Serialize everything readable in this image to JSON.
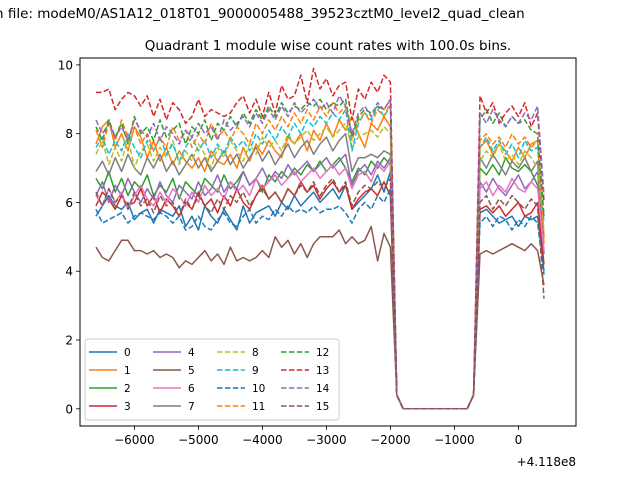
{
  "figure": {
    "suptitle": "n file: modeM0/AS1A12_018T01_9000005488_39523cztM0_level2_quad_clean"
  },
  "chart_data": {
    "type": "line",
    "title": "Quadrant 1 module wise count rates with 100.0s bins.",
    "xlabel": "",
    "ylabel": "",
    "x_offset_text": "+4.118e8",
    "xlim": [
      -6850,
      900
    ],
    "ylim": [
      -0.5,
      10.2
    ],
    "x_ticks": [
      -6000,
      -5000,
      -4000,
      -3000,
      -2000,
      -1000,
      0
    ],
    "x_tick_labels": [
      "−6000",
      "−5000",
      "−4000",
      "−3000",
      "−2000",
      "−1000",
      "0"
    ],
    "y_ticks": [
      0,
      2,
      4,
      6,
      8,
      10
    ],
    "y_tick_labels": [
      "0",
      "2",
      "4",
      "6",
      "8",
      "10"
    ],
    "grid": false,
    "legend": {
      "placement": "lower-left",
      "columns": 4
    },
    "x_range": {
      "start": -6600,
      "step": 100,
      "note_x_is_offset_from": "+4.118e8"
    },
    "series": [
      {
        "name": "0",
        "color": "#1f77b4",
        "dash": "solid",
        "values": [
          5.6,
          5.9,
          6.2,
          5.9,
          5.8,
          6.0,
          5.5,
          5.7,
          5.8,
          5.4,
          5.8,
          5.7,
          5.6,
          5.9,
          5.3,
          5.6,
          5.2,
          5.9,
          5.6,
          5.4,
          5.8,
          5.5,
          5.2,
          5.9,
          5.4,
          5.7,
          5.8,
          5.9,
          5.6,
          6.0,
          5.8,
          6.2,
          5.9,
          6.1,
          6.3,
          6.0,
          6.2,
          6.4,
          6.1,
          6.5,
          5.8,
          6.0,
          6.2,
          6.4,
          6.8,
          6.3,
          6.9,
          0.4,
          0.0,
          0.0,
          0.0,
          0.0,
          0.0,
          0.0,
          0.0,
          0.0,
          0.0,
          0.0,
          0.0,
          0.4,
          5.7,
          5.8,
          5.6,
          5.4,
          5.5,
          5.6,
          5.3,
          5.6,
          5.5,
          5.6,
          4.0
        ]
      },
      {
        "name": "1",
        "color": "#ff7f0e",
        "dash": "solid",
        "values": [
          7.7,
          8.2,
          8.4,
          7.6,
          8.0,
          7.5,
          8.2,
          7.9,
          7.3,
          7.8,
          7.2,
          7.6,
          7.1,
          7.5,
          7.2,
          7.0,
          7.3,
          6.9,
          7.5,
          7.2,
          7.1,
          7.4,
          7.0,
          7.6,
          7.2,
          7.7,
          7.4,
          7.8,
          7.5,
          7.3,
          7.9,
          7.7,
          8.0,
          7.5,
          8.1,
          7.8,
          8.3,
          7.9,
          8.4,
          8.1,
          8.5,
          8.0,
          7.6,
          8.3,
          8.1,
          8.5,
          8.2,
          0.4,
          0.0,
          0.0,
          0.0,
          0.0,
          0.0,
          0.0,
          0.0,
          0.0,
          0.0,
          0.0,
          0.0,
          0.4,
          7.6,
          7.8,
          7.4,
          7.7,
          7.5,
          7.2,
          7.6,
          7.3,
          7.7,
          7.8,
          4.8
        ]
      },
      {
        "name": "2",
        "color": "#2ca02c",
        "dash": "solid",
        "values": [
          6.7,
          6.4,
          6.9,
          6.3,
          6.7,
          6.2,
          6.6,
          6.4,
          6.8,
          6.2,
          6.5,
          6.3,
          6.7,
          6.1,
          6.6,
          6.4,
          6.2,
          6.7,
          6.5,
          6.3,
          6.8,
          6.4,
          6.6,
          6.9,
          6.5,
          6.7,
          6.3,
          6.8,
          6.6,
          6.9,
          6.7,
          7.0,
          6.8,
          7.1,
          6.9,
          7.2,
          6.9,
          7.1,
          7.3,
          7.0,
          6.6,
          7.0,
          6.8,
          7.2,
          7.0,
          7.3,
          7.1,
          0.4,
          0.0,
          0.0,
          0.0,
          0.0,
          0.0,
          0.0,
          0.0,
          0.0,
          0.0,
          0.0,
          0.0,
          0.4,
          7.0,
          6.8,
          7.1,
          6.8,
          7.3,
          7.0,
          6.9,
          7.1,
          6.9,
          6.5,
          5.6
        ]
      },
      {
        "name": "3",
        "color": "#d62728",
        "dash": "solid",
        "values": [
          5.9,
          6.3,
          6.1,
          5.8,
          6.2,
          5.9,
          6.0,
          6.4,
          5.9,
          6.2,
          5.7,
          6.1,
          5.9,
          5.6,
          6.0,
          5.8,
          6.3,
          5.9,
          6.1,
          5.7,
          6.2,
          5.9,
          6.4,
          6.0,
          5.8,
          6.2,
          6.5,
          6.1,
          6.3,
          6.0,
          6.4,
          6.2,
          6.6,
          6.3,
          6.5,
          6.1,
          6.4,
          6.6,
          6.3,
          6.5,
          5.8,
          6.1,
          6.3,
          6.4,
          6.2,
          6.6,
          6.2,
          0.4,
          0.0,
          0.0,
          0.0,
          0.0,
          0.0,
          0.0,
          0.0,
          0.0,
          0.0,
          0.0,
          0.0,
          0.4,
          5.8,
          5.9,
          5.7,
          5.9,
          5.6,
          5.8,
          6.0,
          5.6,
          5.7,
          6.0,
          4.2
        ]
      },
      {
        "name": "4",
        "color": "#9467bd",
        "dash": "solid",
        "values": [
          6.2,
          6.6,
          6.0,
          6.5,
          6.2,
          6.7,
          6.3,
          6.0,
          6.4,
          6.1,
          6.6,
          6.2,
          6.0,
          6.5,
          6.3,
          6.1,
          6.6,
          6.2,
          6.4,
          6.8,
          6.3,
          6.6,
          6.4,
          6.9,
          6.5,
          6.7,
          7.0,
          6.6,
          6.9,
          6.7,
          7.1,
          6.8,
          7.0,
          7.2,
          6.9,
          7.1,
          7.3,
          7.0,
          7.2,
          7.4,
          6.5,
          6.9,
          7.1,
          6.8,
          7.2,
          7.0,
          7.3,
          0.4,
          0.0,
          0.0,
          0.0,
          0.0,
          0.0,
          0.0,
          0.0,
          0.0,
          0.0,
          0.0,
          0.0,
          0.4,
          6.6,
          6.3,
          6.7,
          6.4,
          6.2,
          6.5,
          6.8,
          6.4,
          6.6,
          6.9,
          4.5
        ]
      },
      {
        "name": "5",
        "color": "#8c564b",
        "dash": "solid",
        "values": [
          4.7,
          4.4,
          4.3,
          4.6,
          4.9,
          4.9,
          4.6,
          4.6,
          4.5,
          4.6,
          4.4,
          4.5,
          4.4,
          4.1,
          4.3,
          4.2,
          4.4,
          4.6,
          4.3,
          4.5,
          4.2,
          4.7,
          4.3,
          4.4,
          4.3,
          4.4,
          4.6,
          4.4,
          5.0,
          4.7,
          4.9,
          4.5,
          4.8,
          4.4,
          4.8,
          5.0,
          5.0,
          5.0,
          5.2,
          4.8,
          5.0,
          4.8,
          4.9,
          5.3,
          4.3,
          5.1,
          4.7,
          0.4,
          0.0,
          0.0,
          0.0,
          0.0,
          0.0,
          0.0,
          0.0,
          0.0,
          0.0,
          0.0,
          0.0,
          0.4,
          4.5,
          4.6,
          4.5,
          4.6,
          4.7,
          4.8,
          4.7,
          4.6,
          4.8,
          4.6,
          3.6
        ]
      },
      {
        "name": "6",
        "color": "#e377c2",
        "dash": "solid",
        "values": [
          6.2,
          5.9,
          6.4,
          6.0,
          6.3,
          5.8,
          6.2,
          6.5,
          6.1,
          5.9,
          6.3,
          6.0,
          6.4,
          6.2,
          5.9,
          6.3,
          6.0,
          6.5,
          6.2,
          6.4,
          6.1,
          6.6,
          6.3,
          6.5,
          6.2,
          6.7,
          6.4,
          6.6,
          6.8,
          6.5,
          6.7,
          6.9,
          6.6,
          6.8,
          7.0,
          6.7,
          6.9,
          7.1,
          6.8,
          7.0,
          6.4,
          6.8,
          6.9,
          6.6,
          7.1,
          6.9,
          7.2,
          0.4,
          0.0,
          0.0,
          0.0,
          0.0,
          0.0,
          0.0,
          0.0,
          0.0,
          0.0,
          0.0,
          0.0,
          0.4,
          6.4,
          6.6,
          6.2,
          6.5,
          6.3,
          6.7,
          6.4,
          6.3,
          6.6,
          6.4,
          4.6
        ]
      },
      {
        "name": "7",
        "color": "#7f7f7f",
        "dash": "solid",
        "values": [
          6.9,
          7.2,
          6.8,
          7.3,
          6.9,
          7.4,
          7.0,
          6.8,
          7.3,
          7.0,
          7.4,
          6.9,
          7.2,
          6.8,
          7.1,
          7.4,
          7.0,
          7.3,
          6.9,
          7.2,
          7.5,
          7.1,
          7.4,
          7.0,
          7.3,
          7.6,
          7.2,
          7.5,
          7.1,
          7.4,
          7.7,
          7.3,
          7.6,
          7.8,
          7.4,
          7.7,
          7.9,
          7.5,
          7.8,
          8.0,
          6.9,
          7.3,
          7.3,
          7.4,
          7.3,
          7.5,
          7.4,
          0.4,
          0.0,
          0.0,
          0.0,
          0.0,
          0.0,
          0.0,
          0.0,
          0.0,
          0.0,
          0.0,
          0.0,
          0.4,
          7.3,
          7.0,
          7.4,
          7.1,
          6.8,
          7.2,
          7.0,
          7.3,
          6.9,
          7.2,
          5.0
        ]
      },
      {
        "name": "8",
        "color": "#bcbd22",
        "dash": "dashed",
        "values": [
          7.4,
          7.8,
          7.1,
          7.6,
          7.2,
          7.9,
          7.0,
          7.5,
          7.7,
          7.2,
          7.6,
          7.3,
          7.8,
          7.1,
          7.5,
          7.2,
          7.7,
          7.4,
          7.0,
          7.6,
          7.3,
          7.8,
          7.5,
          7.2,
          7.7,
          7.4,
          7.9,
          7.6,
          7.8,
          7.5,
          8.0,
          7.7,
          7.9,
          8.1,
          7.8,
          8.0,
          8.2,
          7.9,
          8.1,
          8.3,
          7.6,
          7.9,
          8.0,
          8.1,
          7.9,
          8.2,
          8.0,
          0.4,
          0.0,
          0.0,
          0.0,
          0.0,
          0.0,
          0.0,
          0.0,
          0.0,
          0.0,
          0.0,
          0.0,
          0.4,
          7.2,
          7.5,
          7.3,
          7.7,
          7.2,
          7.4,
          7.1,
          7.5,
          7.3,
          7.0,
          5.2
        ]
      },
      {
        "name": "9",
        "color": "#17becf",
        "dash": "dashed",
        "values": [
          7.6,
          7.9,
          7.4,
          7.8,
          7.5,
          8.0,
          7.6,
          7.3,
          7.8,
          7.5,
          7.9,
          7.4,
          7.7,
          7.2,
          7.6,
          7.9,
          7.5,
          7.8,
          7.3,
          7.7,
          7.4,
          7.9,
          7.6,
          7.8,
          7.5,
          8.0,
          7.7,
          8.1,
          7.8,
          8.2,
          7.9,
          8.3,
          8.0,
          8.4,
          8.2,
          8.5,
          8.3,
          8.6,
          8.4,
          8.7,
          7.5,
          8.3,
          8.6,
          8.4,
          8.8,
          8.5,
          8.8,
          0.4,
          0.0,
          0.0,
          0.0,
          0.0,
          0.0,
          0.0,
          0.0,
          0.0,
          0.0,
          0.0,
          0.0,
          0.4,
          7.6,
          7.9,
          7.5,
          7.8,
          7.4,
          7.7,
          7.3,
          7.8,
          7.5,
          7.6,
          5.4
        ]
      },
      {
        "name": "10",
        "color": "#1f77b4",
        "dash": "dashed",
        "values": [
          5.8,
          5.4,
          5.5,
          5.6,
          5.7,
          5.4,
          5.6,
          5.7,
          5.6,
          5.5,
          5.7,
          5.6,
          5.4,
          5.6,
          5.2,
          5.3,
          5.6,
          5.3,
          5.2,
          5.5,
          5.7,
          5.4,
          5.3,
          5.6,
          5.8,
          5.4,
          5.6,
          5.5,
          5.8,
          5.6,
          5.9,
          5.7,
          5.8,
          5.7,
          5.9,
          5.7,
          5.8,
          5.8,
          5.9,
          5.7,
          5.4,
          5.8,
          6.0,
          5.8,
          6.2,
          6.0,
          6.4,
          0.4,
          0.0,
          0.0,
          0.0,
          0.0,
          0.0,
          0.0,
          0.0,
          0.0,
          0.0,
          0.0,
          0.0,
          0.4,
          5.4,
          5.6,
          5.3,
          5.6,
          5.5,
          5.2,
          5.5,
          5.3,
          5.6,
          5.4,
          3.9
        ]
      },
      {
        "name": "11",
        "color": "#ff7f0e",
        "dash": "dashed",
        "values": [
          8.1,
          7.6,
          8.3,
          7.8,
          8.4,
          7.9,
          8.2,
          7.7,
          8.0,
          7.5,
          7.9,
          7.6,
          8.2,
          7.8,
          8.1,
          7.6,
          8.0,
          7.7,
          8.3,
          7.9,
          8.1,
          7.8,
          8.2,
          8.0,
          7.7,
          8.3,
          8.0,
          8.4,
          8.1,
          8.5,
          8.2,
          8.6,
          8.3,
          8.7,
          8.4,
          8.8,
          8.5,
          8.9,
          8.6,
          8.8,
          7.8,
          8.4,
          8.6,
          8.3,
          8.7,
          8.5,
          8.9,
          0.4,
          0.0,
          0.0,
          0.0,
          0.0,
          0.0,
          0.0,
          0.0,
          0.0,
          0.0,
          0.0,
          0.0,
          0.4,
          7.8,
          8.0,
          7.7,
          7.9,
          7.6,
          8.0,
          7.7,
          7.9,
          7.6,
          7.8,
          5.0
        ]
      },
      {
        "name": "12",
        "color": "#2ca02c",
        "dash": "dashed",
        "values": [
          8.2,
          7.8,
          8.4,
          7.9,
          8.3,
          7.7,
          8.5,
          8.0,
          8.2,
          7.8,
          8.4,
          7.9,
          8.1,
          8.3,
          7.7,
          8.2,
          8.0,
          8.4,
          7.8,
          8.3,
          8.1,
          8.5,
          8.2,
          8.6,
          8.3,
          8.7,
          8.4,
          8.8,
          8.5,
          8.9,
          8.6,
          8.8,
          8.7,
          8.9,
          8.8,
          9.0,
          8.7,
          8.9,
          8.8,
          9.0,
          7.9,
          8.5,
          8.7,
          8.6,
          8.8,
          8.7,
          9.0,
          0.4,
          0.0,
          0.0,
          0.0,
          0.0,
          0.0,
          0.0,
          0.0,
          0.0,
          0.0,
          0.0,
          0.0,
          0.4,
          8.4,
          8.7,
          8.3,
          8.6,
          8.2,
          8.5,
          8.3,
          8.4,
          8.1,
          8.0,
          5.6
        ]
      },
      {
        "name": "13",
        "color": "#d62728",
        "dash": "dashed",
        "values": [
          9.2,
          9.2,
          9.3,
          8.7,
          9.0,
          9.2,
          9.1,
          8.8,
          9.1,
          8.5,
          9.0,
          8.4,
          8.9,
          8.7,
          8.3,
          8.5,
          9.0,
          8.5,
          8.7,
          8.6,
          8.5,
          8.6,
          8.9,
          9.1,
          8.6,
          9.0,
          8.5,
          9.2,
          8.6,
          9.4,
          9.0,
          9.1,
          9.7,
          8.9,
          9.9,
          9.3,
          9.6,
          9.1,
          9.4,
          9.5,
          8.4,
          9.3,
          9.0,
          9.5,
          9.2,
          9.7,
          9.5,
          0.4,
          0.0,
          0.0,
          0.0,
          0.0,
          0.0,
          0.0,
          0.0,
          0.0,
          0.0,
          0.0,
          0.0,
          0.4,
          9.1,
          8.6,
          8.9,
          8.3,
          8.6,
          8.8,
          8.5,
          8.9,
          8.2,
          8.6,
          6.0
        ]
      },
      {
        "name": "14",
        "color": "#9467bd",
        "dash": "dashed",
        "values": [
          8.4,
          8.0,
          8.3,
          7.9,
          8.2,
          7.8,
          8.4,
          8.1,
          7.9,
          8.3,
          7.8,
          8.2,
          8.0,
          7.7,
          8.1,
          7.9,
          8.3,
          8.0,
          8.2,
          7.8,
          8.4,
          8.1,
          8.3,
          8.5,
          8.2,
          8.6,
          8.3,
          8.7,
          8.4,
          8.8,
          8.5,
          8.9,
          8.6,
          8.8,
          9.0,
          8.7,
          8.9,
          8.6,
          9.1,
          8.8,
          8.0,
          8.6,
          8.8,
          8.5,
          8.9,
          8.7,
          9.0,
          0.4,
          0.0,
          0.0,
          0.0,
          0.0,
          0.0,
          0.0,
          0.0,
          0.0,
          0.0,
          0.0,
          0.0,
          0.4,
          8.6,
          8.3,
          8.7,
          8.4,
          8.2,
          8.5,
          8.3,
          8.6,
          8.4,
          8.8,
          6.2
        ]
      },
      {
        "name": "15",
        "color": "#8c564b",
        "dash": "dashed",
        "values": [
          6.3,
          5.9,
          6.4,
          6.0,
          6.2,
          5.8,
          6.3,
          5.9,
          6.1,
          5.7,
          6.2,
          5.9,
          6.0,
          5.6,
          6.1,
          5.8,
          6.2,
          5.9,
          5.7,
          6.1,
          5.8,
          6.2,
          6.0,
          6.3,
          5.9,
          6.2,
          6.4,
          6.1,
          6.3,
          6.0,
          6.4,
          6.2,
          6.5,
          6.3,
          6.6,
          6.2,
          6.5,
          6.7,
          6.3,
          6.6,
          5.9,
          6.3,
          6.5,
          6.4,
          6.6,
          6.4,
          6.7,
          0.4,
          0.0,
          0.0,
          0.0,
          0.0,
          0.0,
          0.0,
          0.0,
          0.0,
          0.0,
          0.0,
          0.0,
          0.4,
          6.0,
          6.2,
          5.8,
          6.1,
          5.9,
          6.2,
          6.0,
          5.8,
          6.1,
          5.9,
          3.2
        ]
      }
    ]
  }
}
